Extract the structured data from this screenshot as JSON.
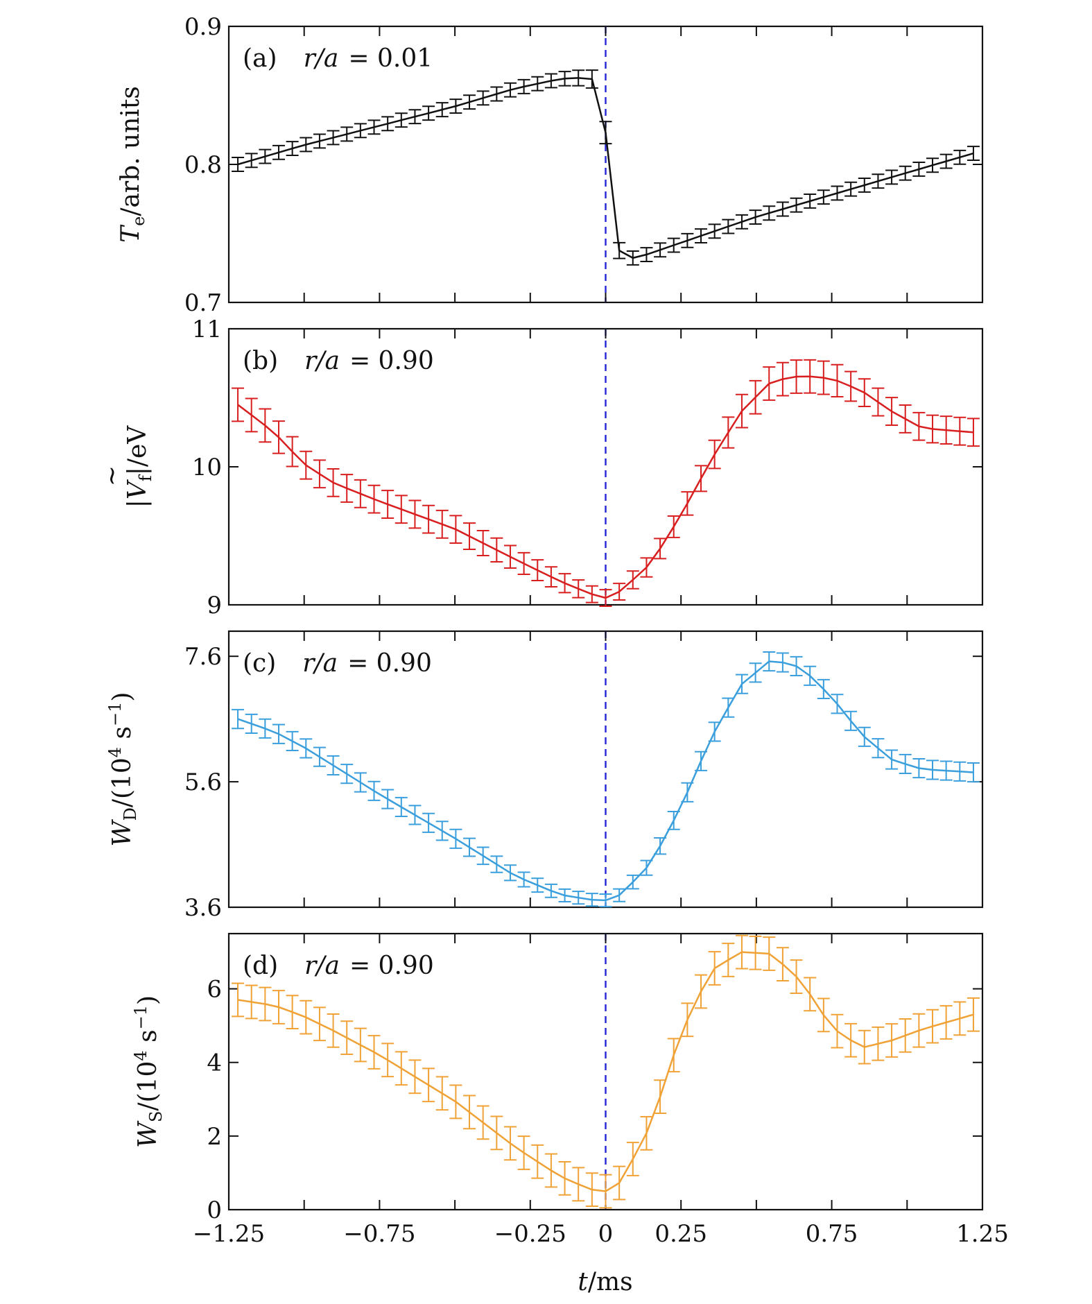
{
  "figure": {
    "xlabel": "t/ms",
    "x_ticks": [
      "−1.25",
      "−0.75",
      "−0.25",
      "0",
      "0.25",
      "0.75",
      "1.25"
    ],
    "x_tick_values": [
      -1.25,
      -0.75,
      -0.25,
      0,
      0.25,
      0.75,
      1.25
    ]
  },
  "chart_data": [
    {
      "type": "line",
      "panel": "(a)",
      "label": "r/a = 0.01",
      "label_parts": {
        "tag": "(a)",
        "var": "r/a",
        "eq": "= 0.01"
      },
      "ylabel": "Te/arb. units",
      "ylabel_parts": {
        "sym": "T",
        "sub": "e",
        "rest": "/arb. units"
      },
      "color": "#111111",
      "xlim": [
        -1.25,
        1.25
      ],
      "ylim": [
        0.7,
        0.9
      ],
      "yticks": [
        "0.7",
        "0.8",
        "0.9"
      ],
      "ytick_values": [
        0.7,
        0.8,
        0.9
      ],
      "x": [
        -1.22,
        -1.0,
        -0.75,
        -0.5,
        -0.3,
        -0.15,
        -0.05,
        -0.03,
        -0.01,
        0.01,
        0.03,
        0.05,
        0.1,
        0.3,
        0.5,
        0.75,
        1.0,
        1.22
      ],
      "y": [
        0.8,
        0.814,
        0.828,
        0.842,
        0.855,
        0.862,
        0.863,
        0.858,
        0.846,
        0.8,
        0.752,
        0.733,
        0.732,
        0.747,
        0.762,
        0.778,
        0.794,
        0.808
      ],
      "err": [
        0.005,
        0.005,
        0.005,
        0.005,
        0.005,
        0.005,
        0.006,
        0.008,
        0.008,
        0.008,
        0.008,
        0.005,
        0.005,
        0.005,
        0.005,
        0.005,
        0.005,
        0.005
      ]
    },
    {
      "type": "line",
      "panel": "(b)",
      "label": "r/a = 0.90",
      "label_parts": {
        "tag": "(b)",
        "var": "r/a",
        "eq": "= 0.90"
      },
      "ylabel": "|Ṽf|/eV",
      "ylabel_parts": {
        "sym": "|V",
        "tilde": "~",
        "sub": "f",
        "rest": "|/eV"
      },
      "color": "#d81e1e",
      "xlim": [
        -1.25,
        1.25
      ],
      "ylim": [
        9,
        11
      ],
      "yticks": [
        "9",
        "10",
        "11"
      ],
      "ytick_values": [
        9,
        10,
        11
      ],
      "x": [
        -1.22,
        -1.1,
        -1.0,
        -0.9,
        -0.75,
        -0.5,
        -0.3,
        -0.15,
        -0.05,
        0.0,
        0.05,
        0.15,
        0.25,
        0.35,
        0.45,
        0.55,
        0.65,
        0.75,
        0.85,
        0.95,
        1.05,
        1.22
      ],
      "y": [
        10.45,
        10.25,
        10.02,
        9.88,
        9.75,
        9.55,
        9.33,
        9.17,
        9.08,
        9.05,
        9.1,
        9.3,
        9.65,
        10.05,
        10.4,
        10.62,
        10.66,
        10.64,
        10.55,
        10.4,
        10.28,
        10.25
      ],
      "err": [
        0.12,
        0.12,
        0.1,
        0.1,
        0.1,
        0.1,
        0.08,
        0.07,
        0.06,
        0.06,
        0.06,
        0.07,
        0.08,
        0.1,
        0.12,
        0.12,
        0.12,
        0.12,
        0.1,
        0.1,
        0.1,
        0.1
      ]
    },
    {
      "type": "line",
      "panel": "(c)",
      "label": "r/a = 0.90",
      "label_parts": {
        "tag": "(c)",
        "var": "r/a",
        "eq": "= 0.90"
      },
      "ylabel": "WD/(10^4 s^-1)",
      "ylabel_parts": {
        "sym": "W",
        "sub": "D",
        "rest": "/(10",
        "sup1": "4",
        "mid": " s",
        "sup2": "−1",
        "end": ")"
      },
      "color": "#3a9fdc",
      "xlim": [
        -1.25,
        1.25
      ],
      "ylim": [
        3.6,
        8.0
      ],
      "yticks": [
        "3.6",
        "5.6",
        "7.6"
      ],
      "ytick_values": [
        3.6,
        5.6,
        7.6
      ],
      "x": [
        -1.22,
        -1.1,
        -1.0,
        -0.9,
        -0.75,
        -0.5,
        -0.3,
        -0.15,
        -0.05,
        0.0,
        0.05,
        0.15,
        0.25,
        0.35,
        0.45,
        0.55,
        0.65,
        0.75,
        0.85,
        0.95,
        1.05,
        1.22
      ],
      "y": [
        6.6,
        6.4,
        6.15,
        5.85,
        5.4,
        4.7,
        4.1,
        3.8,
        3.72,
        3.71,
        3.8,
        4.3,
        5.2,
        6.3,
        7.15,
        7.55,
        7.42,
        6.95,
        6.35,
        5.95,
        5.8,
        5.75
      ],
      "err": [
        0.15,
        0.15,
        0.15,
        0.15,
        0.15,
        0.15,
        0.12,
        0.1,
        0.1,
        0.1,
        0.1,
        0.12,
        0.15,
        0.15,
        0.15,
        0.15,
        0.15,
        0.15,
        0.15,
        0.15,
        0.15,
        0.15
      ]
    },
    {
      "type": "line",
      "panel": "(d)",
      "label": "r/a = 0.90",
      "label_parts": {
        "tag": "(d)",
        "var": "r/a",
        "eq": "= 0.90"
      },
      "ylabel": "WS/(10^4 s^-1)",
      "ylabel_parts": {
        "sym": "W",
        "sub": "S",
        "rest": "/(10",
        "sup1": "4",
        "mid": " s",
        "sup2": "−1",
        "end": ")"
      },
      "color": "#f0a236",
      "xlim": [
        -1.25,
        1.25
      ],
      "ylim": [
        0,
        7.5
      ],
      "yticks": [
        "0",
        "2",
        "4",
        "6"
      ],
      "ytick_values": [
        0,
        2,
        4,
        6
      ],
      "x": [
        -1.22,
        -1.1,
        -1.0,
        -0.9,
        -0.75,
        -0.5,
        -0.3,
        -0.15,
        -0.05,
        0.0,
        0.05,
        0.15,
        0.25,
        0.35,
        0.45,
        0.55,
        0.65,
        0.75,
        0.85,
        0.95,
        1.05,
        1.22
      ],
      "y": [
        5.7,
        5.55,
        5.25,
        4.85,
        4.2,
        2.95,
        1.7,
        0.9,
        0.55,
        0.5,
        0.75,
        2.3,
        4.8,
        6.5,
        7.0,
        6.95,
        6.2,
        4.95,
        4.4,
        4.6,
        4.9,
        5.3
      ],
      "err": [
        0.45,
        0.45,
        0.45,
        0.45,
        0.45,
        0.45,
        0.45,
        0.45,
        0.45,
        0.45,
        0.45,
        0.45,
        0.45,
        0.45,
        0.45,
        0.45,
        0.45,
        0.45,
        0.45,
        0.45,
        0.45,
        0.45
      ]
    }
  ]
}
